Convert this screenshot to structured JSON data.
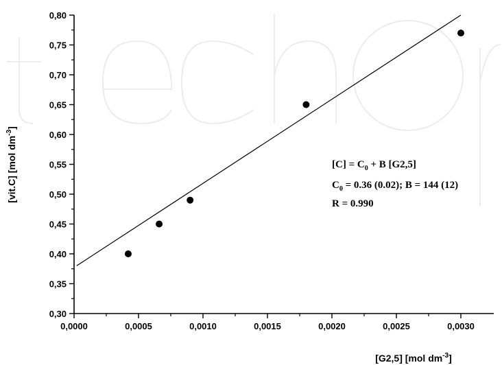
{
  "chart_data": {
    "type": "scatter",
    "x": [
      0.00042,
      0.00066,
      0.0009,
      0.0018,
      0.003
    ],
    "y": [
      0.4,
      0.45,
      0.49,
      0.65,
      0.77
    ],
    "fit_line": {
      "x": [
        2e-05,
        0.003
      ],
      "y": [
        0.38,
        0.8
      ]
    },
    "xlim": [
      0,
      0.0032
    ],
    "ylim": [
      0.3,
      0.8
    ],
    "x_ticks": [
      "0,0000",
      "0,0005",
      "0,0010",
      "0,0015",
      "0,0020",
      "0,0025",
      "0,0030"
    ],
    "y_ticks": [
      "0,30",
      "0,35",
      "0,40",
      "0,45",
      "0,50",
      "0,55",
      "0,60",
      "0,65",
      "0,70",
      "0,75",
      "0,80"
    ],
    "xlabel": "[G2,5] [mol dm",
    "xlabel_sup": "-3",
    "xlabel_end": "]",
    "ylabel": "[vit.C] [mol dm",
    "ylabel_sup": "-3",
    "ylabel_end": "]",
    "grid": false,
    "annotation": {
      "line1": {
        "a": "[C] = C",
        "sub": "0",
        "b": " + B [G2,5]"
      },
      "line2": {
        "a": "C",
        "sub": "0",
        "b": " = 0.36 (0.02); B = 144 (12)"
      },
      "line3": "R = 0.990"
    }
  }
}
